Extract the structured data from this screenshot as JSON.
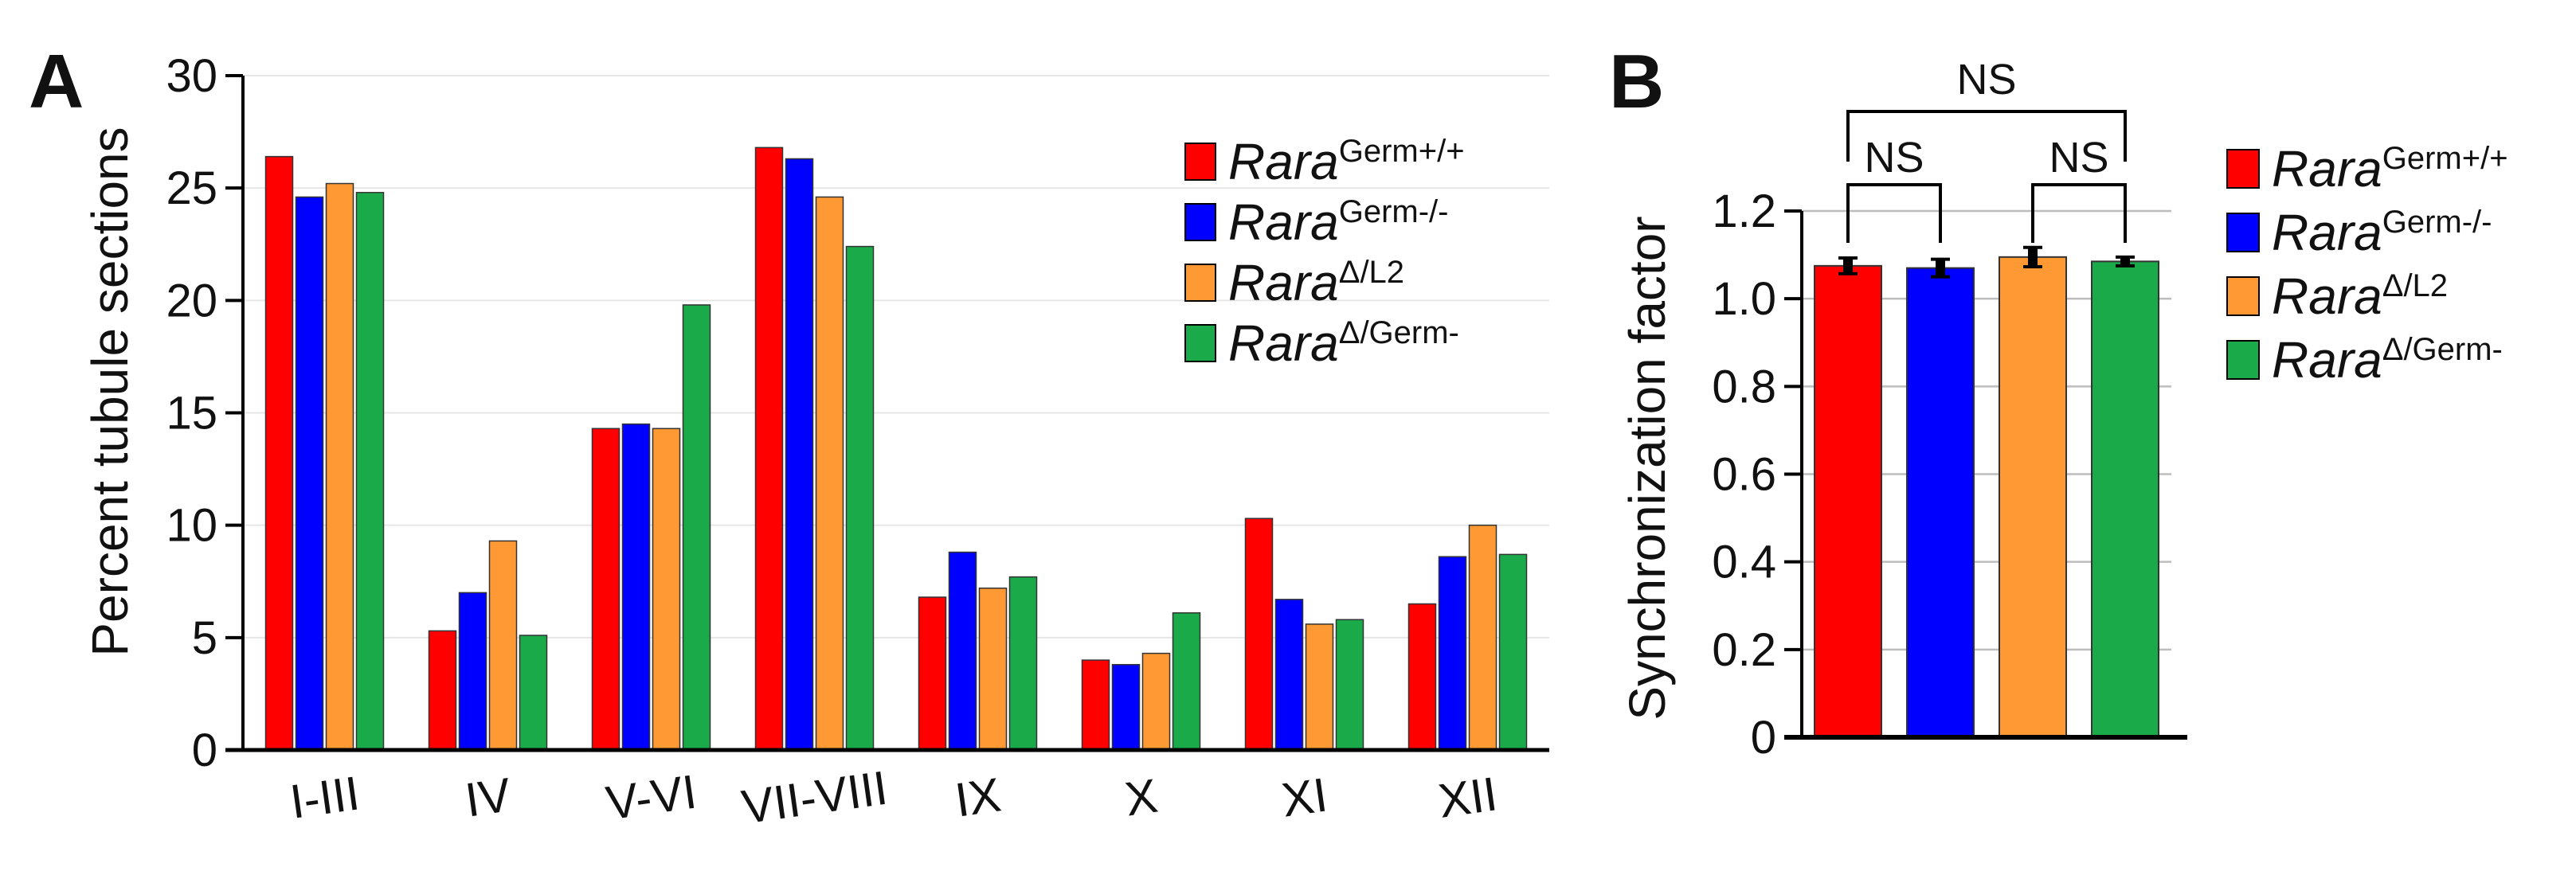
{
  "chart_data": [
    {
      "panel_label": "A",
      "type": "bar",
      "ylabel": "Percent tubule sections",
      "ylim": [
        0,
        30
      ],
      "yticks": [
        "0",
        "5",
        "10",
        "15",
        "20",
        "25",
        "30"
      ],
      "grid": true,
      "legend_position": "top-right",
      "categories": [
        "I-III",
        "IV",
        "V-VI",
        "VII-VIII",
        "IX",
        "X",
        "XI",
        "XII"
      ],
      "series": [
        {
          "name": "RaraGerm+/+",
          "name_base": "Rara",
          "name_sup": "Germ+/+",
          "color": "#ff0000",
          "values": [
            26.4,
            5.3,
            14.3,
            26.8,
            6.8,
            4.0,
            10.3,
            6.5
          ]
        },
        {
          "name": "RaraGerm-/-",
          "name_base": "Rara",
          "name_sup": "Germ-/-",
          "color": "#0000ff",
          "values": [
            24.6,
            7.0,
            14.5,
            26.3,
            8.8,
            3.8,
            6.7,
            8.6
          ]
        },
        {
          "name": "RaraΔ/L2",
          "name_base": "Rara",
          "name_sup": "Δ/L2",
          "color": "#ff9933",
          "values": [
            25.2,
            9.3,
            14.3,
            24.6,
            7.2,
            4.3,
            5.6,
            10.0
          ]
        },
        {
          "name": "RaraΔ/Germ-",
          "name_base": "Rara",
          "name_sup": "Δ/Germ-",
          "color": "#1aaa4a",
          "values": [
            24.8,
            5.1,
            19.8,
            22.4,
            7.7,
            6.1,
            5.8,
            8.7
          ]
        }
      ]
    },
    {
      "panel_label": "B",
      "type": "bar",
      "ylabel": "Synchronization factor",
      "ylim": [
        0,
        1.2
      ],
      "yticks": [
        "0",
        "0.2",
        "0.4",
        "0.6",
        "0.8",
        "1.0",
        "1.2"
      ],
      "grid": true,
      "legend_position": "right",
      "categories": [
        "RaraGerm+/+",
        "RaraGerm-/-",
        "RaraΔ/L2",
        "RaraΔ/Germ-"
      ],
      "values": [
        1.075,
        1.07,
        1.095,
        1.085
      ],
      "errors": [
        0.018,
        0.02,
        0.022,
        0.01
      ],
      "colors": [
        "#ff0000",
        "#0000ff",
        "#ff9933",
        "#1aaa4a"
      ],
      "significance": [
        {
          "from": 0,
          "to": 3,
          "label": "NS"
        },
        {
          "from": 0,
          "to": 1,
          "label": "NS"
        },
        {
          "from": 2,
          "to": 3,
          "label": "NS"
        }
      ]
    }
  ]
}
